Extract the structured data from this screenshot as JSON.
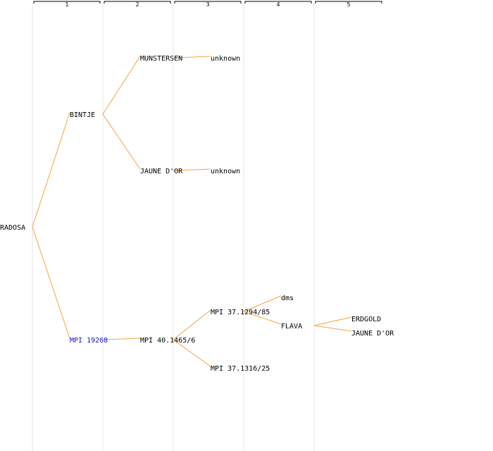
{
  "generations": [
    "1",
    "2",
    "3",
    "4",
    "5"
  ],
  "colors": {
    "edge": "#f5a343",
    "column_rule": "#e6e6e6",
    "header_bracket": "#000000",
    "text": "#000000",
    "link_text": "#1414cc"
  },
  "nodes": [
    {
      "id": "radosa",
      "label": "RADOSA",
      "gen": 0,
      "parent": null,
      "link": false
    },
    {
      "id": "bintje",
      "label": "BINTJE",
      "gen": 1,
      "parent": "radosa",
      "link": false
    },
    {
      "id": "mpi19268",
      "label": "MPI 19268",
      "gen": 1,
      "parent": "radosa",
      "link": true
    },
    {
      "id": "munstersen",
      "label": "MUNSTERSEN",
      "gen": 2,
      "parent": "bintje",
      "link": false
    },
    {
      "id": "jaunedor1",
      "label": "JAUNE D'OR",
      "gen": 2,
      "parent": "bintje",
      "link": false
    },
    {
      "id": "mpi40",
      "label": "MPI 40.1465/6",
      "gen": 2,
      "parent": "mpi19268",
      "link": false
    },
    {
      "id": "unknown1",
      "label": "unknown",
      "gen": 3,
      "parent": "munstersen",
      "link": false
    },
    {
      "id": "unknown2",
      "label": "unknown",
      "gen": 3,
      "parent": "jaunedor1",
      "link": false
    },
    {
      "id": "mpi37a",
      "label": "MPI 37.1294/85",
      "gen": 3,
      "parent": "mpi40",
      "link": false
    },
    {
      "id": "mpi37b",
      "label": "MPI 37.1316/25",
      "gen": 3,
      "parent": "mpi40",
      "link": false
    },
    {
      "id": "dms",
      "label": "dms",
      "gen": 4,
      "parent": "mpi37a",
      "link": false
    },
    {
      "id": "flava",
      "label": "FLAVA",
      "gen": 4,
      "parent": "mpi37a",
      "link": false
    },
    {
      "id": "erdgold",
      "label": "ERDGOLD",
      "gen": 5,
      "parent": "flava",
      "link": false
    },
    {
      "id": "jaunedor2",
      "label": "JAUNE D'OR",
      "gen": 5,
      "parent": "flava",
      "link": false
    }
  ]
}
